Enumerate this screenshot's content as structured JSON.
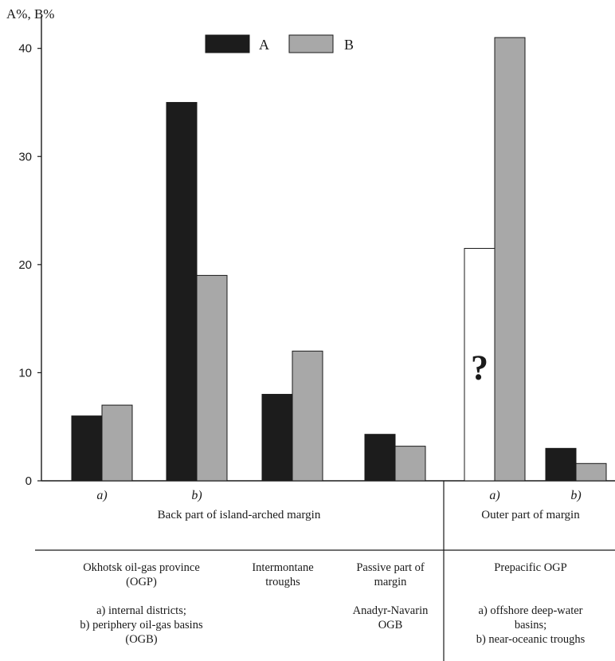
{
  "chart_data": {
    "type": "bar",
    "ylabel": "A%, B%",
    "ylim": [
      0,
      43
    ],
    "yticks": [
      0,
      10,
      20,
      30,
      40
    ],
    "legend": {
      "placement": "top-center",
      "entries": [
        {
          "key": "A",
          "label": "A",
          "color": "#1c1c1c"
        },
        {
          "key": "B",
          "label": "B",
          "color": "#a8a8a8"
        }
      ]
    },
    "series": [
      {
        "name": "A",
        "values": [
          6,
          35,
          8,
          4.3,
          21.5,
          3
        ]
      },
      {
        "name": "B",
        "values": [
          7,
          19,
          12,
          3.2,
          41,
          1.6
        ]
      }
    ],
    "categories": [
      "a)",
      "b)",
      "",
      "",
      "a)",
      "b)"
    ],
    "uncertain_bar": {
      "series": "A",
      "category_index": 4,
      "mark": "?",
      "fill": "#ffffff"
    },
    "groups": [
      {
        "label": "Back part of island-arched margin"
      },
      {
        "label": "Outer part of margin"
      }
    ],
    "descriptions": [
      {
        "title_lines": [
          "Okhotsk oil-gas province",
          "(OGP)"
        ],
        "detail_lines": [
          "a) internal districts;",
          "b) periphery oil-gas basins",
          "(OGB)"
        ]
      },
      {
        "title_lines": [
          "Intermontane",
          "troughs"
        ],
        "detail_lines": []
      },
      {
        "title_lines": [
          "Passive part of",
          "margin"
        ],
        "detail_lines": [
          "Anadyr-Navarin",
          "OGB"
        ]
      },
      {
        "title_lines": [
          "Prepacific OGP"
        ],
        "detail_lines": [
          "a) offshore deep-water",
          "basins;",
          "b) near-oceanic troughs"
        ]
      }
    ]
  }
}
